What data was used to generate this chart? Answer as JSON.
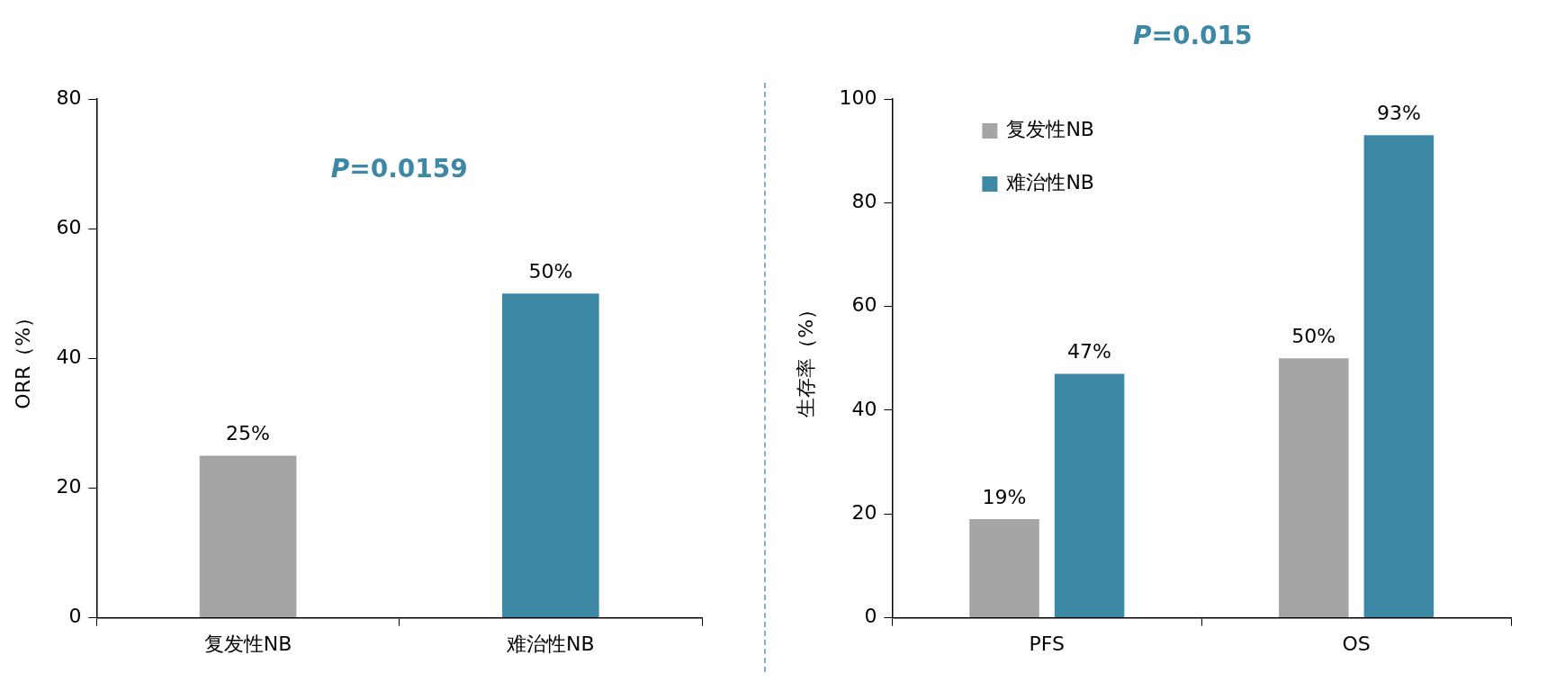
{
  "chart_data": [
    {
      "type": "bar",
      "categories": [
        "复发性NB",
        "难治性NB"
      ],
      "values": [
        25,
        50
      ],
      "colors": [
        "#a5a5a5",
        "#3c88a5"
      ],
      "value_labels": [
        "25%",
        "50%"
      ],
      "ylabel": "ORR（%）",
      "ylim": [
        0,
        80
      ],
      "yticks": [
        0,
        20,
        40,
        60,
        80
      ],
      "grid": false,
      "legend": false,
      "annotations": [
        "P=0.0159"
      ]
    },
    {
      "type": "bar",
      "categories": [
        "PFS",
        "OS"
      ],
      "series": [
        {
          "name": "复发性NB",
          "color": "#a5a5a5",
          "values": [
            19,
            50
          ],
          "value_labels": [
            "19%",
            "50%"
          ]
        },
        {
          "name": "难治性NB",
          "color": "#3c88a5",
          "values": [
            47,
            93
          ],
          "value_labels": [
            "47%",
            "93%"
          ]
        }
      ],
      "ylabel": "生存率（%）",
      "ylim": [
        0,
        100
      ],
      "yticks": [
        0,
        20,
        40,
        60,
        80,
        100
      ],
      "grid": false,
      "legend": "top left",
      "annotations": [
        "P=0.015"
      ]
    }
  ]
}
